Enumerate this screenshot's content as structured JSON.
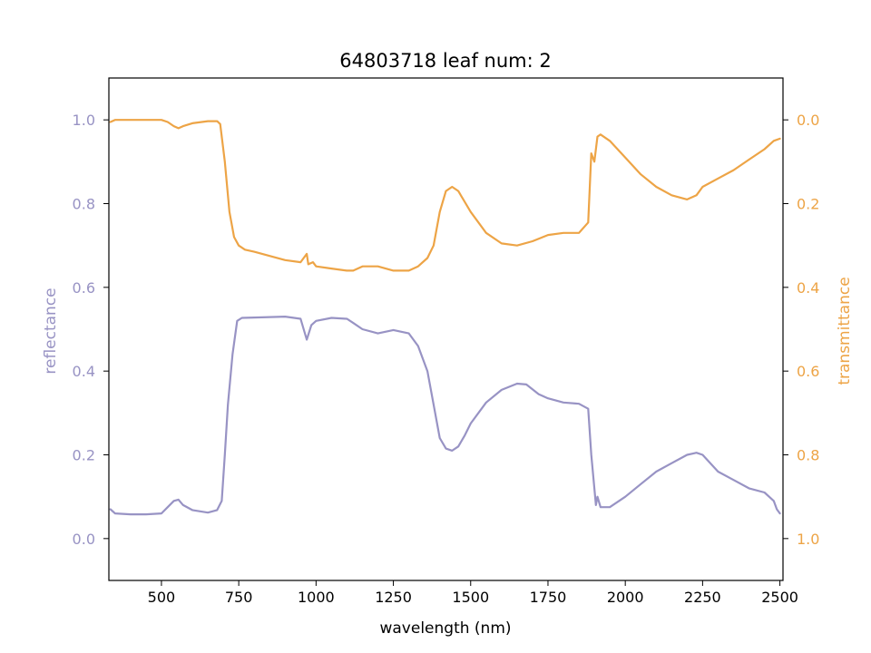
{
  "chart_data": {
    "type": "line",
    "title": "64803718 leaf num: 2",
    "xlabel": "wavelength (nm)",
    "xlim": [
      330,
      2510
    ],
    "x_ticks": [
      "500",
      "750",
      "1000",
      "1250",
      "1500",
      "1750",
      "2000",
      "2250",
      "2500"
    ],
    "x_tick_values": [
      500,
      750,
      1000,
      1250,
      1500,
      1750,
      2000,
      2250,
      2500
    ],
    "grid": false,
    "legend": "none",
    "axes": {
      "left": {
        "label": "reflectance",
        "color": "#9893c4",
        "ylim": [
          -0.1,
          1.1
        ],
        "ticks": [
          "0.0",
          "0.2",
          "0.4",
          "0.6",
          "0.8",
          "1.0"
        ],
        "tick_values": [
          0.0,
          0.2,
          0.4,
          0.6,
          0.8,
          1.0
        ]
      },
      "right": {
        "label": "transmittance",
        "color": "#eda446",
        "ylim": [
          1.1,
          -0.1
        ],
        "inverted": true,
        "ticks": [
          "0.0",
          "0.2",
          "0.4",
          "0.6",
          "0.8",
          "1.0"
        ],
        "tick_values": [
          0.0,
          0.2,
          0.4,
          0.6,
          0.8,
          1.0
        ]
      }
    },
    "series": [
      {
        "axis": "left",
        "color": "#9893c4",
        "x": [
          335,
          350,
          400,
          450,
          500,
          520,
          540,
          555,
          570,
          600,
          650,
          680,
          695,
          705,
          715,
          730,
          745,
          760,
          800,
          900,
          950,
          970,
          985,
          1000,
          1050,
          1100,
          1120,
          1150,
          1200,
          1250,
          1300,
          1330,
          1360,
          1380,
          1400,
          1420,
          1440,
          1460,
          1480,
          1500,
          1550,
          1600,
          1650,
          1680,
          1720,
          1750,
          1800,
          1850,
          1880,
          1890,
          1900,
          1905,
          1910,
          1920,
          1950,
          2000,
          2050,
          2100,
          2150,
          2200,
          2230,
          2250,
          2300,
          2350,
          2400,
          2450,
          2480,
          2490,
          2500
        ],
        "y": [
          0.07,
          0.06,
          0.058,
          0.058,
          0.06,
          0.075,
          0.09,
          0.093,
          0.08,
          0.068,
          0.062,
          0.068,
          0.09,
          0.2,
          0.32,
          0.44,
          0.52,
          0.527,
          0.528,
          0.53,
          0.525,
          0.475,
          0.51,
          0.52,
          0.527,
          0.525,
          0.515,
          0.5,
          0.49,
          0.498,
          0.49,
          0.46,
          0.4,
          0.32,
          0.24,
          0.215,
          0.21,
          0.22,
          0.245,
          0.275,
          0.325,
          0.355,
          0.37,
          0.368,
          0.345,
          0.335,
          0.325,
          0.322,
          0.31,
          0.2,
          0.12,
          0.08,
          0.1,
          0.075,
          0.075,
          0.1,
          0.13,
          0.16,
          0.18,
          0.2,
          0.205,
          0.2,
          0.16,
          0.14,
          0.12,
          0.11,
          0.09,
          0.07,
          0.06
        ]
      },
      {
        "axis": "right",
        "color": "#eda446",
        "x": [
          335,
          350,
          400,
          450,
          500,
          520,
          540,
          555,
          570,
          600,
          650,
          680,
          690,
          705,
          720,
          735,
          750,
          770,
          800,
          850,
          900,
          950,
          970,
          975,
          990,
          1000,
          1050,
          1100,
          1120,
          1150,
          1200,
          1250,
          1300,
          1330,
          1360,
          1380,
          1400,
          1420,
          1440,
          1460,
          1500,
          1550,
          1600,
          1650,
          1700,
          1750,
          1800,
          1850,
          1880,
          1890,
          1900,
          1910,
          1920,
          1950,
          2000,
          2050,
          2100,
          2150,
          2200,
          2230,
          2250,
          2300,
          2350,
          2400,
          2450,
          2480,
          2500
        ],
        "y": [
          0.005,
          0.0,
          0.0,
          0.0,
          0.0,
          0.005,
          0.015,
          0.02,
          0.015,
          0.008,
          0.003,
          0.003,
          0.01,
          0.1,
          0.22,
          0.28,
          0.3,
          0.31,
          0.315,
          0.325,
          0.335,
          0.34,
          0.32,
          0.345,
          0.34,
          0.35,
          0.355,
          0.36,
          0.36,
          0.35,
          0.35,
          0.36,
          0.36,
          0.35,
          0.33,
          0.3,
          0.22,
          0.17,
          0.16,
          0.17,
          0.22,
          0.27,
          0.295,
          0.3,
          0.29,
          0.275,
          0.27,
          0.27,
          0.245,
          0.08,
          0.1,
          0.04,
          0.035,
          0.05,
          0.09,
          0.13,
          0.16,
          0.18,
          0.19,
          0.18,
          0.16,
          0.14,
          0.12,
          0.095,
          0.07,
          0.05,
          0.045
        ]
      }
    ]
  }
}
